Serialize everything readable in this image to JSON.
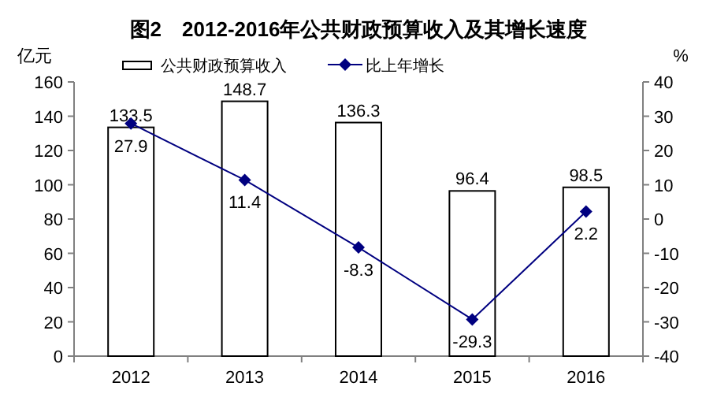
{
  "chart_data": {
    "type": "bar",
    "title": "图2　2012-2016年公共财政预算收入及其增长速度",
    "ylabel": "亿元",
    "y2label": "%",
    "categories": [
      "2012",
      "2013",
      "2014",
      "2015",
      "2016"
    ],
    "series": [
      {
        "name": "公共财政预算收入",
        "color": "#ffffff",
        "values": [
          133.5,
          148.7,
          136.3,
          96.4,
          98.5
        ]
      },
      {
        "name": "比上年增长",
        "type": "line",
        "axis": "y2",
        "color": "#000080",
        "values": [
          27.9,
          11.4,
          -8.3,
          -29.3,
          2.2
        ]
      }
    ],
    "ylim": [
      0,
      160
    ],
    "yticks": [
      0,
      20,
      40,
      60,
      80,
      100,
      120,
      140,
      160
    ],
    "y2lim": [
      -40,
      40
    ],
    "y2ticks": [
      -40,
      -30,
      -20,
      -10,
      0,
      10,
      20,
      30,
      40
    ],
    "legend": "top",
    "data_labels": true,
    "marker": "diamond"
  }
}
